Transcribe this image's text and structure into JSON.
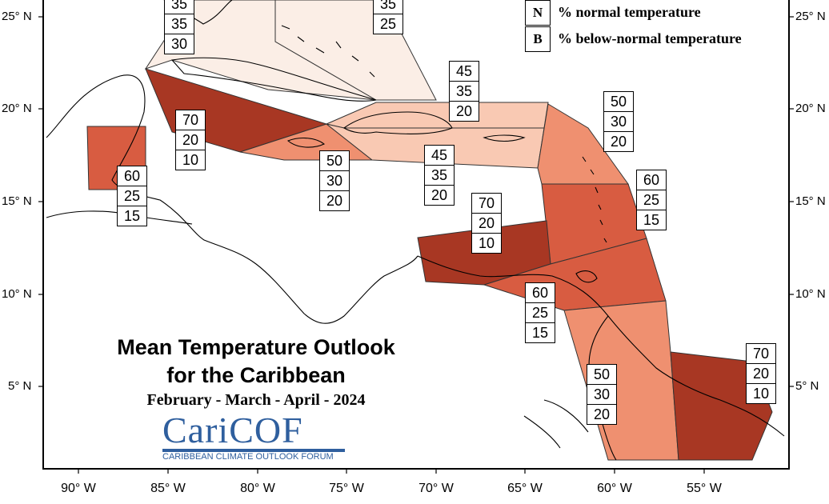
{
  "title_line1": "Mean Temperature Outlook",
  "title_line2": "for the Caribbean",
  "subtitle": "February - March - April - 2024",
  "logo": {
    "name": "CariCOF",
    "tagline": "CARIBBEAN CLIMATE OUTLOOK FORUM"
  },
  "legend": [
    {
      "key": "N",
      "label": "% normal temperature"
    },
    {
      "key": "B",
      "label": "% below-normal temperature"
    }
  ],
  "lat_labels": [
    "25° N",
    "20° N",
    "15° N",
    "10° N",
    "5° N"
  ],
  "lon_labels": [
    "90° W",
    "85° W",
    "80° W",
    "75° W",
    "70° W",
    "65° W",
    "60° W",
    "55° W"
  ],
  "colors": {
    "p30": "#fbeee6",
    "p45": "#f9c9b3",
    "p50": "#ef9070",
    "p60": "#d85c41",
    "p70": "#a83723"
  },
  "regions": [
    {
      "name": "bahamas",
      "probs": [
        "35",
        "35",
        "30"
      ],
      "above": 35
    },
    {
      "name": "turks-caicos",
      "probs": [
        "35",
        "25"
      ],
      "above": 35
    },
    {
      "name": "western-caribbean",
      "probs": [
        "70",
        "20",
        "10"
      ],
      "above": 70
    },
    {
      "name": "jamaica",
      "probs": [
        "50",
        "30",
        "20"
      ],
      "above": 50
    },
    {
      "name": "hispaniola",
      "probs": [
        "45",
        "35",
        "20"
      ],
      "above": 45
    },
    {
      "name": "hispaniola-south",
      "probs": [
        "45",
        "35",
        "20"
      ],
      "above": 45
    },
    {
      "name": "belize",
      "probs": [
        "60",
        "25",
        "15"
      ],
      "above": 60
    },
    {
      "name": "leeward-islands",
      "probs": [
        "50",
        "30",
        "20"
      ],
      "above": 50
    },
    {
      "name": "windward-islands",
      "probs": [
        "60",
        "25",
        "15"
      ],
      "above": 60
    },
    {
      "name": "abc-islands",
      "probs": [
        "70",
        "20",
        "10"
      ],
      "above": 70
    },
    {
      "name": "trinidad",
      "probs": [
        "60",
        "25",
        "15"
      ],
      "above": 60
    },
    {
      "name": "guyana",
      "probs": [
        "50",
        "30",
        "20"
      ],
      "above": 50
    },
    {
      "name": "suriname-guiana",
      "probs": [
        "70",
        "20",
        "10"
      ],
      "above": 70
    }
  ]
}
